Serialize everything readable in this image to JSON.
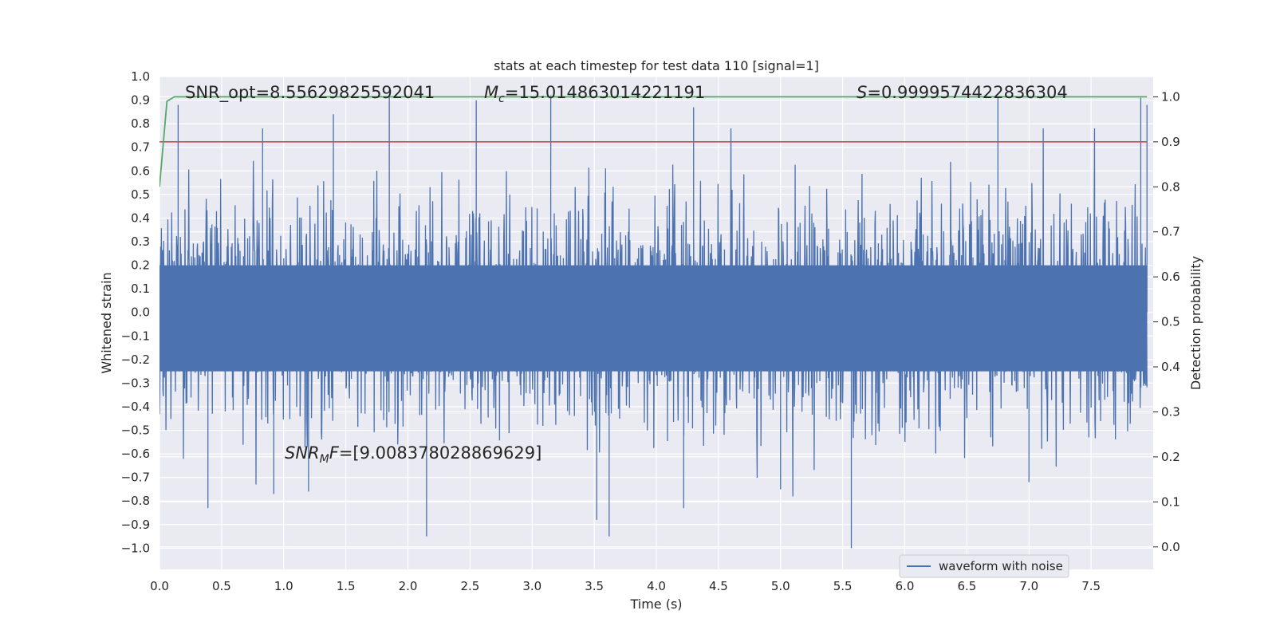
{
  "chart_data": {
    "type": "line",
    "title": "stats at each timestep for test data 110 [signal=1]",
    "xlabel": "Time (s)",
    "ylabel": "Whitened strain",
    "y2label": "Detection probability",
    "xlim": [
      0.0,
      8.0
    ],
    "ylim": [
      -1.09,
      1.0
    ],
    "y2lim": [
      -0.05,
      1.045
    ],
    "x_ticks": [
      "0.0",
      "0.5",
      "1.0",
      "1.5",
      "2.0",
      "2.5",
      "3.0",
      "3.5",
      "4.0",
      "4.5",
      "5.0",
      "5.5",
      "6.0",
      "6.5",
      "7.0",
      "7.5"
    ],
    "y_ticks": [
      "1.0",
      "0.9",
      "0.8",
      "0.7",
      "0.6",
      "0.5",
      "0.4",
      "0.3",
      "0.2",
      "0.1",
      "0.0",
      "−0.1",
      "−0.2",
      "−0.3",
      "−0.4",
      "−0.5",
      "−0.6",
      "−0.7",
      "−0.8",
      "−0.9",
      "−1.0"
    ],
    "y2_ticks": [
      "1.0",
      "0.9",
      "0.8",
      "0.7",
      "0.6",
      "0.5",
      "0.4",
      "0.3",
      "0.2",
      "0.1",
      "0.0"
    ],
    "grid": true,
    "legend": {
      "placement": "lower-right",
      "entries": [
        "waveform with noise"
      ]
    },
    "annotations": {
      "snr_opt": {
        "prefix": "SNR_opt=",
        "value": "8.55629825592041"
      },
      "mc": {
        "symbol": "M",
        "sub": "c",
        "value": "=15.014863014221191"
      },
      "s": {
        "symbol": "S",
        "value": "=0.9999574422836304"
      },
      "snr_mf": {
        "symbol": "SNR",
        "sub": "M",
        "mid": "F",
        "value": "=[9.008378028869629]"
      }
    },
    "series": [
      {
        "name": "waveform with noise",
        "axis": "left",
        "color": "#4c72b0",
        "x_range": [
          0.0,
          7.95
        ],
        "envelope_typical": [
          -0.45,
          0.45
        ],
        "peaks": [
          {
            "x": 0.15,
            "y": 0.88
          },
          {
            "x": 0.83,
            "y": 0.78
          },
          {
            "x": 1.4,
            "y": 0.84
          },
          {
            "x": 1.85,
            "y": 0.92
          },
          {
            "x": 2.55,
            "y": 0.9
          },
          {
            "x": 3.15,
            "y": 0.92
          },
          {
            "x": 4.3,
            "y": 0.87
          },
          {
            "x": 6.75,
            "y": 0.91
          },
          {
            "x": 7.9,
            "y": 0.91
          },
          {
            "x": 7.95,
            "y": 0.88
          }
        ],
        "troughs": [
          {
            "x": 0.39,
            "y": -0.83
          },
          {
            "x": 0.92,
            "y": -0.77
          },
          {
            "x": 1.2,
            "y": -0.76
          },
          {
            "x": 2.15,
            "y": -0.95
          },
          {
            "x": 3.52,
            "y": -0.88
          },
          {
            "x": 3.62,
            "y": -0.95
          },
          {
            "x": 4.22,
            "y": -0.83
          },
          {
            "x": 5.57,
            "y": -1.0
          },
          {
            "x": 5.0,
            "y": -0.75
          },
          {
            "x": 7.0,
            "y": -0.72
          }
        ]
      },
      {
        "name": "",
        "axis": "right",
        "color": "#55a868",
        "x": [
          0.0,
          0.06,
          0.12,
          7.95
        ],
        "y": [
          0.8,
          0.99,
          1.0,
          1.0
        ]
      },
      {
        "name": "",
        "axis": "right",
        "color": "#c44e52",
        "x": [
          0.0,
          7.95
        ],
        "y": [
          0.9,
          0.9
        ]
      }
    ]
  }
}
